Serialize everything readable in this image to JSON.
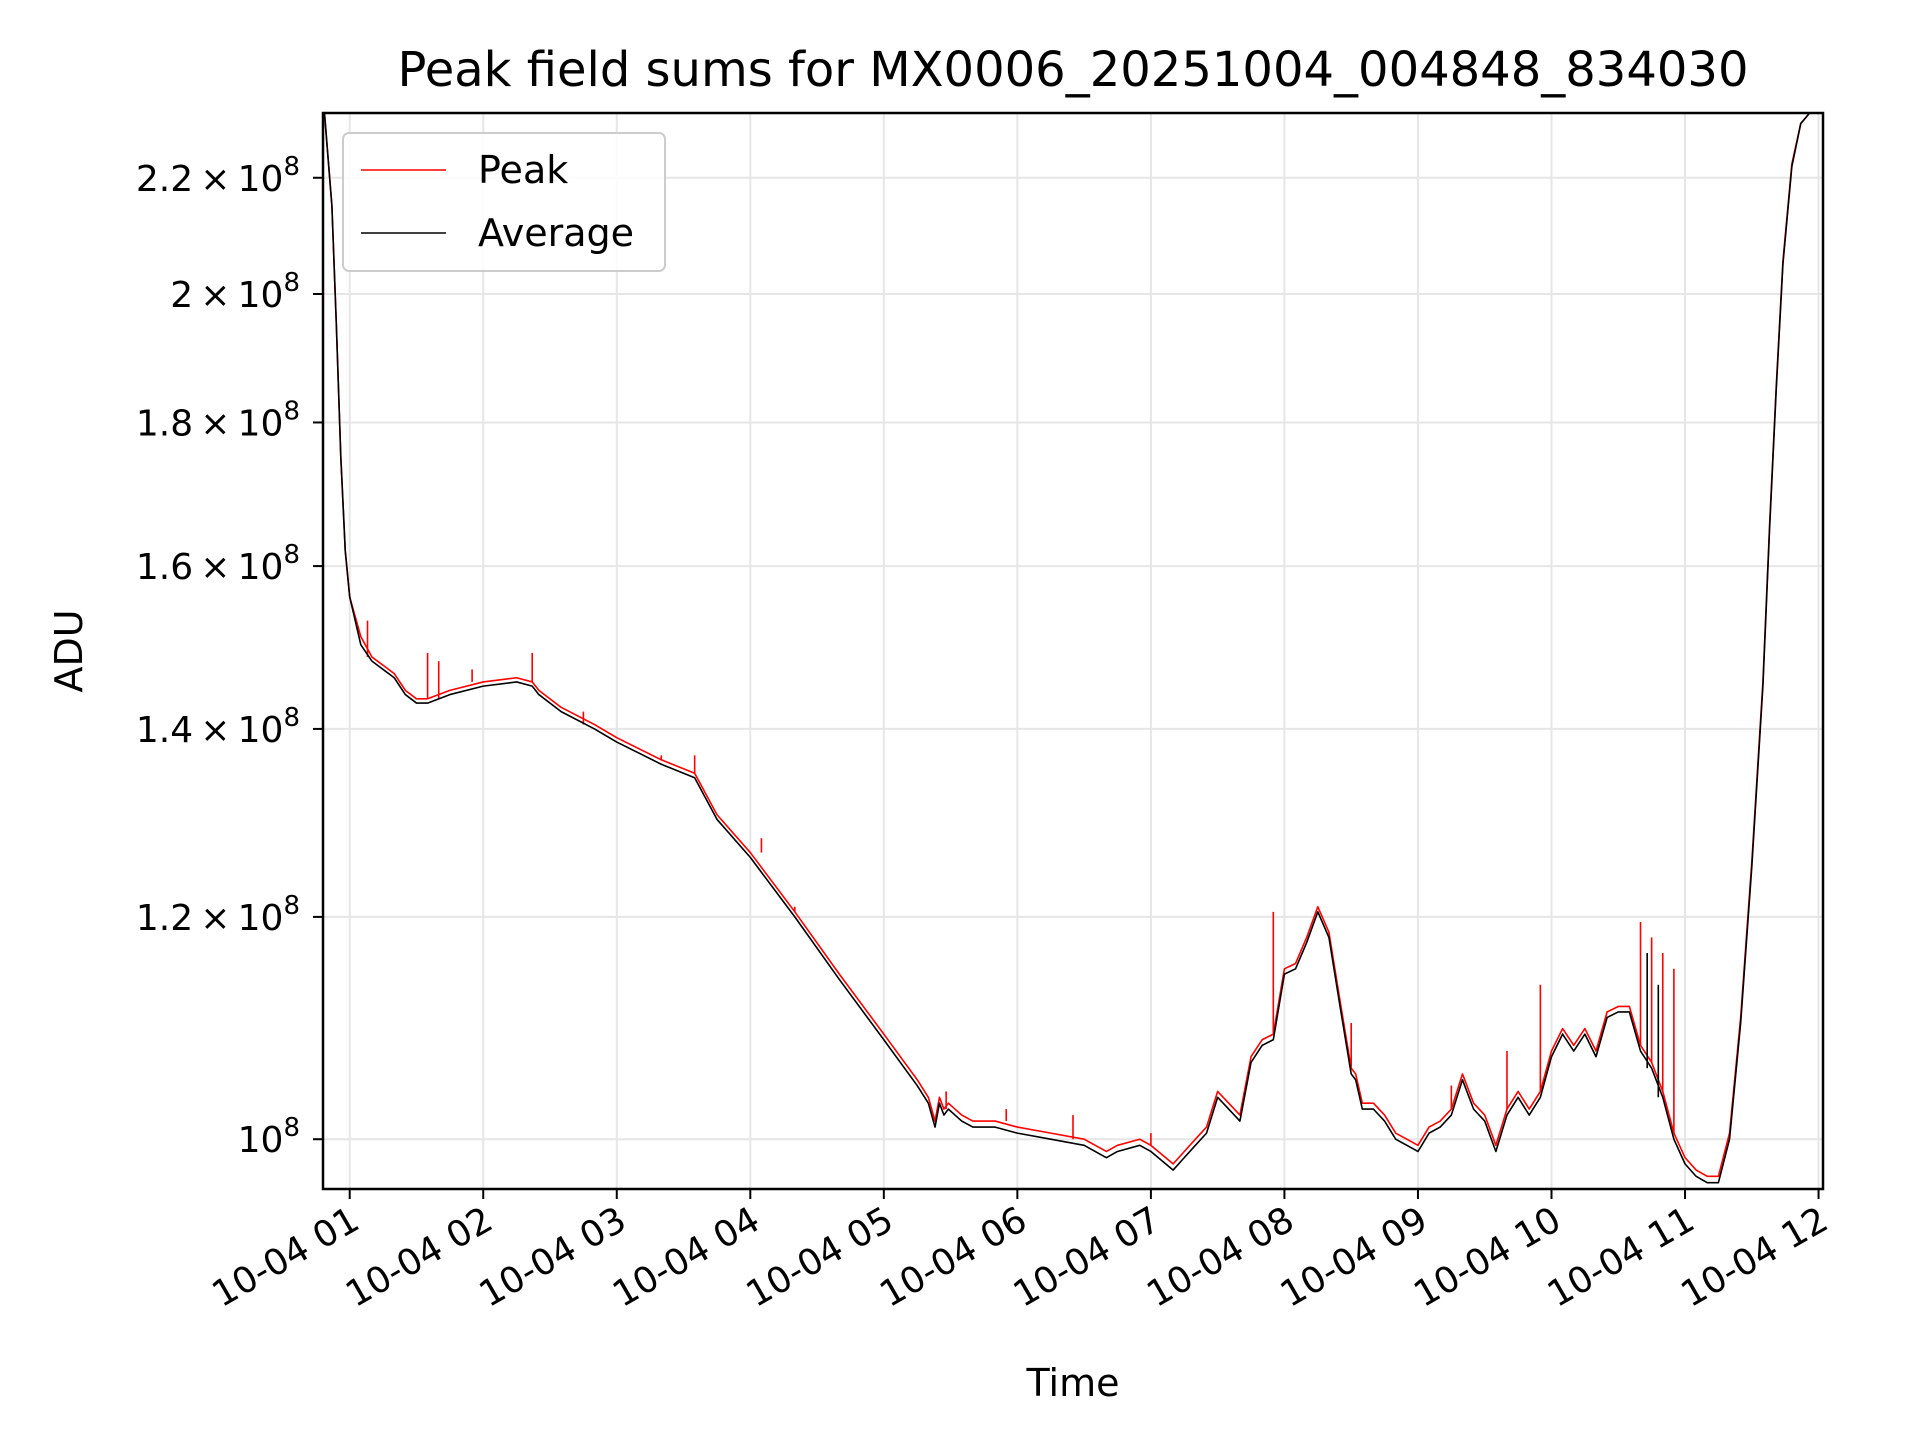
{
  "chart_data": {
    "type": "line",
    "title": "Peak field sums for MX0006_20251004_004848_834030",
    "xlabel": "Time",
    "ylabel": "ADU",
    "yscale": "log",
    "xlim": [
      "2025-10-04T00:48:00",
      "2025-10-04T12:02:00"
    ],
    "ylim": [
      96000000,
      232000000
    ],
    "x_ticks": [
      {
        "value": "2025-10-04T01:00:00",
        "label": "10-04 01"
      },
      {
        "value": "2025-10-04T02:00:00",
        "label": "10-04 02"
      },
      {
        "value": "2025-10-04T03:00:00",
        "label": "10-04 03"
      },
      {
        "value": "2025-10-04T04:00:00",
        "label": "10-04 04"
      },
      {
        "value": "2025-10-04T05:00:00",
        "label": "10-04 05"
      },
      {
        "value": "2025-10-04T06:00:00",
        "label": "10-04 06"
      },
      {
        "value": "2025-10-04T07:00:00",
        "label": "10-04 07"
      },
      {
        "value": "2025-10-04T08:00:00",
        "label": "10-04 08"
      },
      {
        "value": "2025-10-04T09:00:00",
        "label": "10-04 09"
      },
      {
        "value": "2025-10-04T10:00:00",
        "label": "10-04 10"
      },
      {
        "value": "2025-10-04T11:00:00",
        "label": "10-04 11"
      },
      {
        "value": "2025-10-04T12:00:00",
        "label": "10-04 12"
      }
    ],
    "y_ticks": [
      {
        "value": 100000000,
        "mant": "",
        "exp": "8"
      },
      {
        "value": 120000000,
        "mant": "1.2",
        "exp": "8"
      },
      {
        "value": 140000000,
        "mant": "1.4",
        "exp": "8"
      },
      {
        "value": 160000000,
        "mant": "1.6",
        "exp": "8"
      },
      {
        "value": 180000000,
        "mant": "1.8",
        "exp": "8"
      },
      {
        "value": 200000000,
        "mant": "2",
        "exp": "8"
      },
      {
        "value": 220000000,
        "mant": "2.2",
        "exp": "8"
      }
    ],
    "grid": true,
    "legend": {
      "position": "top-left",
      "entries": [
        "Peak",
        "Average"
      ]
    },
    "series": [
      {
        "name": "Average",
        "color": "#000000",
        "x": [
          "2025-10-04T00:48:40",
          "2025-10-04T00:52:00",
          "2025-10-04T00:54:00",
          "2025-10-04T00:56:00",
          "2025-10-04T00:58:00",
          "2025-10-04T01:00:00",
          "2025-10-04T01:05:00",
          "2025-10-04T01:10:00",
          "2025-10-04T01:15:00",
          "2025-10-04T01:20:00",
          "2025-10-04T01:25:00",
          "2025-10-04T01:30:00",
          "2025-10-04T01:35:00",
          "2025-10-04T01:45:00",
          "2025-10-04T02:00:00",
          "2025-10-04T02:15:00",
          "2025-10-04T02:22:00",
          "2025-10-04T02:25:00",
          "2025-10-04T02:35:00",
          "2025-10-04T02:50:00",
          "2025-10-04T03:00:00",
          "2025-10-04T03:20:00",
          "2025-10-04T03:35:00",
          "2025-10-04T03:45:00",
          "2025-10-04T04:00:00",
          "2025-10-04T04:20:00",
          "2025-10-04T04:40:00",
          "2025-10-04T05:00:00",
          "2025-10-04T05:15:00",
          "2025-10-04T05:20:00",
          "2025-10-04T05:23:00",
          "2025-10-04T05:25:00",
          "2025-10-04T05:27:00",
          "2025-10-04T05:29:00",
          "2025-10-04T05:35:00",
          "2025-10-04T05:40:00",
          "2025-10-04T05:50:00",
          "2025-10-04T06:00:00",
          "2025-10-04T06:15:00",
          "2025-10-04T06:30:00",
          "2025-10-04T06:40:00",
          "2025-10-04T06:45:00",
          "2025-10-04T06:55:00",
          "2025-10-04T07:00:00",
          "2025-10-04T07:10:00",
          "2025-10-04T07:15:00",
          "2025-10-04T07:20:00",
          "2025-10-04T07:25:00",
          "2025-10-04T07:30:00",
          "2025-10-04T07:40:00",
          "2025-10-04T07:45:00",
          "2025-10-04T07:50:00",
          "2025-10-04T07:55:00",
          "2025-10-04T08:00:00",
          "2025-10-04T08:05:00",
          "2025-10-04T08:10:00",
          "2025-10-04T08:15:00",
          "2025-10-04T08:20:00",
          "2025-10-04T08:25:00",
          "2025-10-04T08:30:00",
          "2025-10-04T08:32:00",
          "2025-10-04T08:35:00",
          "2025-10-04T08:40:00",
          "2025-10-04T08:45:00",
          "2025-10-04T08:50:00",
          "2025-10-04T08:55:00",
          "2025-10-04T09:00:00",
          "2025-10-04T09:05:00",
          "2025-10-04T09:10:00",
          "2025-10-04T09:15:00",
          "2025-10-04T09:20:00",
          "2025-10-04T09:25:00",
          "2025-10-04T09:30:00",
          "2025-10-04T09:35:00",
          "2025-10-04T09:40:00",
          "2025-10-04T09:45:00",
          "2025-10-04T09:50:00",
          "2025-10-04T09:55:00",
          "2025-10-04T10:00:00",
          "2025-10-04T10:05:00",
          "2025-10-04T10:10:00",
          "2025-10-04T10:15:00",
          "2025-10-04T10:20:00",
          "2025-10-04T10:25:00",
          "2025-10-04T10:30:00",
          "2025-10-04T10:35:00",
          "2025-10-04T10:40:00",
          "2025-10-04T10:45:00",
          "2025-10-04T10:50:00",
          "2025-10-04T10:55:00",
          "2025-10-04T11:00:00",
          "2025-10-04T11:05:00",
          "2025-10-04T11:10:00",
          "2025-10-04T11:15:00",
          "2025-10-04T11:20:00",
          "2025-10-04T11:25:00",
          "2025-10-04T11:30:00",
          "2025-10-04T11:35:00",
          "2025-10-04T11:38:00",
          "2025-10-04T11:41:00",
          "2025-10-04T11:44:00",
          "2025-10-04T11:48:00",
          "2025-10-04T11:52:00",
          "2025-10-04T11:56:00",
          "2025-10-04T12:00:00",
          "2025-10-04T12:02:00"
        ],
        "y": [
          232000000,
          215000000,
          195000000,
          175000000,
          162000000,
          156000000,
          150000000,
          148000000,
          147000000,
          146000000,
          144000000,
          143000000,
          143000000,
          144000000,
          145000000,
          145500000,
          145000000,
          144000000,
          142000000,
          140000000,
          138500000,
          136000000,
          134500000,
          130000000,
          126000000,
          120000000,
          114000000,
          108500000,
          104500000,
          103000000,
          101000000,
          103000000,
          102000000,
          102500000,
          101500000,
          101000000,
          101000000,
          100500000,
          100000000,
          99500000,
          98500000,
          99000000,
          99500000,
          99000000,
          97500000,
          98500000,
          99500000,
          100500000,
          103500000,
          101500000,
          106500000,
          108000000,
          108500000,
          114500000,
          115000000,
          117500000,
          120500000,
          118000000,
          111500000,
          105500000,
          105000000,
          102500000,
          102500000,
          101500000,
          100000000,
          99500000,
          99000000,
          100500000,
          101000000,
          102000000,
          105000000,
          102500000,
          101500000,
          99000000,
          102000000,
          103500000,
          102000000,
          103500000,
          107000000,
          109000000,
          107500000,
          109000000,
          107000000,
          110500000,
          111000000,
          111000000,
          107500000,
          106000000,
          103500000,
          100000000,
          98000000,
          97000000,
          96500000,
          96500000,
          100000000,
          110000000,
          125000000,
          145000000,
          165000000,
          185000000,
          205000000,
          222000000,
          230000000,
          232000000,
          232000000,
          232000000
        ]
      },
      {
        "name": "Peak",
        "color": "#ff0000",
        "x": [
          "2025-10-04T00:48:40",
          "2025-10-04T00:52:00",
          "2025-10-04T00:54:00",
          "2025-10-04T00:56:00",
          "2025-10-04T00:58:00",
          "2025-10-04T01:00:00",
          "2025-10-04T01:05:00",
          "2025-10-04T01:10:00",
          "2025-10-04T01:15:00",
          "2025-10-04T01:20:00",
          "2025-10-04T01:25:00",
          "2025-10-04T01:30:00",
          "2025-10-04T01:35:00",
          "2025-10-04T01:45:00",
          "2025-10-04T02:00:00",
          "2025-10-04T02:15:00",
          "2025-10-04T02:22:00",
          "2025-10-04T02:25:00",
          "2025-10-04T02:35:00",
          "2025-10-04T02:50:00",
          "2025-10-04T03:00:00",
          "2025-10-04T03:20:00",
          "2025-10-04T03:35:00",
          "2025-10-04T03:45:00",
          "2025-10-04T04:00:00",
          "2025-10-04T04:20:00",
          "2025-10-04T04:40:00",
          "2025-10-04T05:00:00",
          "2025-10-04T05:15:00",
          "2025-10-04T05:20:00",
          "2025-10-04T05:23:00",
          "2025-10-04T05:25:00",
          "2025-10-04T05:27:00",
          "2025-10-04T05:29:00",
          "2025-10-04T05:35:00",
          "2025-10-04T05:40:00",
          "2025-10-04T05:50:00",
          "2025-10-04T06:00:00",
          "2025-10-04T06:15:00",
          "2025-10-04T06:30:00",
          "2025-10-04T06:40:00",
          "2025-10-04T06:45:00",
          "2025-10-04T06:55:00",
          "2025-10-04T07:00:00",
          "2025-10-04T07:10:00",
          "2025-10-04T07:15:00",
          "2025-10-04T07:20:00",
          "2025-10-04T07:25:00",
          "2025-10-04T07:30:00",
          "2025-10-04T07:40:00",
          "2025-10-04T07:45:00",
          "2025-10-04T07:50:00",
          "2025-10-04T07:55:00",
          "2025-10-04T08:00:00",
          "2025-10-04T08:05:00",
          "2025-10-04T08:10:00",
          "2025-10-04T08:15:00",
          "2025-10-04T08:20:00",
          "2025-10-04T08:25:00",
          "2025-10-04T08:30:00",
          "2025-10-04T08:32:00",
          "2025-10-04T08:35:00",
          "2025-10-04T08:40:00",
          "2025-10-04T08:45:00",
          "2025-10-04T08:50:00",
          "2025-10-04T08:55:00",
          "2025-10-04T09:00:00",
          "2025-10-04T09:05:00",
          "2025-10-04T09:10:00",
          "2025-10-04T09:15:00",
          "2025-10-04T09:20:00",
          "2025-10-04T09:25:00",
          "2025-10-04T09:30:00",
          "2025-10-04T09:35:00",
          "2025-10-04T09:40:00",
          "2025-10-04T09:45:00",
          "2025-10-04T09:50:00",
          "2025-10-04T09:55:00",
          "2025-10-04T10:00:00",
          "2025-10-04T10:05:00",
          "2025-10-04T10:10:00",
          "2025-10-04T10:15:00",
          "2025-10-04T10:20:00",
          "2025-10-04T10:25:00",
          "2025-10-04T10:30:00",
          "2025-10-04T10:35:00",
          "2025-10-04T10:40:00",
          "2025-10-04T10:45:00",
          "2025-10-04T10:50:00",
          "2025-10-04T10:55:00",
          "2025-10-04T11:00:00",
          "2025-10-04T11:05:00",
          "2025-10-04T11:10:00",
          "2025-10-04T11:15:00",
          "2025-10-04T11:20:00",
          "2025-10-04T11:25:00",
          "2025-10-04T11:30:00",
          "2025-10-04T11:35:00",
          "2025-10-04T11:38:00",
          "2025-10-04T11:41:00",
          "2025-10-04T11:44:00",
          "2025-10-04T11:48:00",
          "2025-10-04T11:52:00",
          "2025-10-04T11:56:00",
          "2025-10-04T12:00:00",
          "2025-10-04T12:02:00"
        ],
        "y": [
          232000000,
          215000000,
          195000000,
          175000000,
          162000000,
          156000000,
          151000000,
          148500000,
          147500000,
          146500000,
          144500000,
          143500000,
          143500000,
          144500000,
          145500000,
          146000000,
          145500000,
          144500000,
          142500000,
          140500000,
          139000000,
          136500000,
          135000000,
          130500000,
          126500000,
          120500000,
          114500000,
          109000000,
          105000000,
          103500000,
          101500000,
          103500000,
          102500000,
          103000000,
          102000000,
          101500000,
          101500000,
          101000000,
          100500000,
          100000000,
          99000000,
          99500000,
          100000000,
          99500000,
          98000000,
          99000000,
          100000000,
          101000000,
          104000000,
          102000000,
          107000000,
          108500000,
          109000000,
          115000000,
          115500000,
          118000000,
          121000000,
          118500000,
          112000000,
          106000000,
          105500000,
          103000000,
          103000000,
          102000000,
          100500000,
          100000000,
          99500000,
          101000000,
          101500000,
          102500000,
          105500000,
          103000000,
          102000000,
          99500000,
          102500000,
          104000000,
          102500000,
          104000000,
          107500000,
          109500000,
          108000000,
          109500000,
          107500000,
          111000000,
          111500000,
          111500000,
          108000000,
          106500000,
          104000000,
          100500000,
          98500000,
          97500000,
          97000000,
          97000000,
          100500000,
          110500000,
          125500000,
          145500000,
          165500000,
          185500000,
          205500000,
          222500000,
          230000000,
          232000000,
          232000000,
          232000000
        ]
      }
    ],
    "spikes": {
      "color": "#ff0000",
      "x": [
        "2025-10-04T01:08:00",
        "2025-10-04T01:35:00",
        "2025-10-04T01:40:00",
        "2025-10-04T01:55:00",
        "2025-10-04T02:22:00",
        "2025-10-04T02:45:00",
        "2025-10-04T03:05:00",
        "2025-10-04T03:20:00",
        "2025-10-04T03:35:00",
        "2025-10-04T04:05:00",
        "2025-10-04T04:20:00",
        "2025-10-04T05:28:00",
        "2025-10-04T05:55:00",
        "2025-10-04T06:25:00",
        "2025-10-04T07:00:00",
        "2025-10-04T07:55:00",
        "2025-10-04T08:30:00",
        "2025-10-04T09:15:00",
        "2025-10-04T09:40:00",
        "2025-10-04T09:55:00",
        "2025-10-04T10:40:00",
        "2025-10-04T10:45:00",
        "2025-10-04T10:50:00",
        "2025-10-04T10:55:00"
      ],
      "y": [
        153000000,
        149000000,
        148000000,
        147000000,
        149000000,
        142000000,
        139000000,
        137000000,
        137000000,
        128000000,
        121000000,
        104000000,
        102500000,
        102000000,
        100500000,
        120500000,
        110000000,
        104500000,
        107500000,
        113500000,
        119500000,
        118000000,
        116500000,
        115000000
      ]
    },
    "average_spikes": {
      "color": "#000000",
      "x": [
        "2025-10-04T10:43:00",
        "2025-10-04T10:48:00"
      ],
      "y": [
        116500000,
        113500000
      ]
    }
  }
}
